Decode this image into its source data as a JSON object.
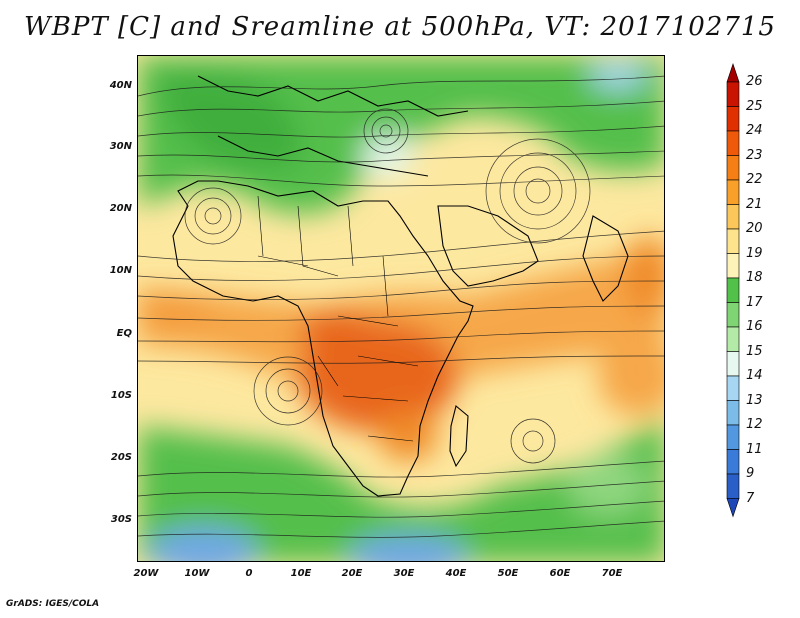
{
  "title": "WBPT [C] and Sreamline at 500hPa, VT: 2017102715",
  "credit": "GrADS: IGES/COLA",
  "map": {
    "lat_labels": [
      "40N",
      "30N",
      "20N",
      "10N",
      "EQ",
      "10S",
      "20S",
      "30S"
    ],
    "lon_labels": [
      "20W",
      "10W",
      "0",
      "10E",
      "20E",
      "30E",
      "40E",
      "50E",
      "60E",
      "70E"
    ]
  },
  "colorbar": {
    "levels": [
      "26",
      "25",
      "24",
      "23",
      "22",
      "21",
      "20",
      "19",
      "18",
      "17",
      "16",
      "15",
      "14",
      "13",
      "12",
      "11",
      "9",
      "7"
    ],
    "colors": [
      "#a50000",
      "#c81400",
      "#e03000",
      "#ef5a0a",
      "#f57f14",
      "#f8a02a",
      "#fbc75a",
      "#fde38c",
      "#fdf2b8",
      "#52c14a",
      "#7fd474",
      "#b4eaa8",
      "#e6f8f0",
      "#a6d6f2",
      "#7bbce9",
      "#5298e0",
      "#3a7ad8",
      "#2a5fc8",
      "#1e47b8"
    ],
    "arrow_top_color": "#a50000",
    "arrow_bottom_color": "#1e47b8"
  }
}
